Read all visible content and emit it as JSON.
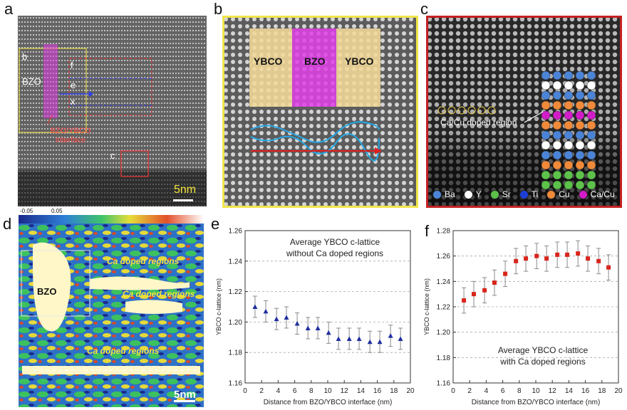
{
  "panels": {
    "a": {
      "label": "a",
      "sublabels": {
        "b": "b",
        "f": "f",
        "e": "e",
        "x": "x",
        "c": "c"
      },
      "bzo": "BZO",
      "interface": [
        "BZO/YBCO",
        "interface"
      ],
      "scale": "5nm"
    },
    "b": {
      "label": "b",
      "regions": [
        "YBCO",
        "BZO",
        "YBCO"
      ]
    },
    "c": {
      "label": "c",
      "doped_region": "Ca/Cu doped region",
      "legend": [
        {
          "name": "Ba",
          "color": "#4b84d6"
        },
        {
          "name": "Y",
          "color": "#ffffff"
        },
        {
          "name": "Sr",
          "color": "#5cc24a"
        },
        {
          "name": "Ti",
          "color": "#1e3fd6"
        },
        {
          "name": "Cu",
          "color": "#f08a3a"
        },
        {
          "name": "Ca/Cu",
          "color": "#d21cc8"
        }
      ]
    },
    "d": {
      "label": "d",
      "colorbar_min": "-0.05",
      "colorbar_max": "0.05",
      "ca_label": "Ca doped regions",
      "bzo": "BZO",
      "scale": "5nm"
    }
  },
  "chart_data": [
    {
      "panel": "e",
      "type": "scatter",
      "label": "e",
      "title_lines": [
        "Average YBCO c-lattice",
        "without Ca doped regions"
      ],
      "xlabel": "Distance from BZO/YBCO interface (nm)",
      "ylabel": "YBCO c-lattice (nm)",
      "xlim": [
        0,
        20
      ],
      "ylim": [
        1.16,
        1.26
      ],
      "xticks": [
        "0",
        "2",
        "4",
        "6",
        "8",
        "10",
        "12",
        "14",
        "16",
        "18",
        "20"
      ],
      "yticks": [
        "1.16",
        "1.18",
        "1.20",
        "1.22",
        "1.24",
        "1.26"
      ],
      "marker_color": "#1f2fa0",
      "x": [
        1.2,
        2.5,
        3.8,
        5.0,
        6.3,
        7.6,
        8.8,
        10.1,
        11.3,
        12.6,
        13.8,
        15.1,
        16.3,
        17.6,
        18.8
      ],
      "y": [
        1.21,
        1.207,
        1.202,
        1.203,
        1.199,
        1.196,
        1.196,
        1.193,
        1.189,
        1.189,
        1.189,
        1.187,
        1.187,
        1.191,
        1.189
      ],
      "err": [
        0.007,
        0.007,
        0.007,
        0.007,
        0.007,
        0.007,
        0.007,
        0.007,
        0.007,
        0.007,
        0.007,
        0.007,
        0.007,
        0.007,
        0.007
      ]
    },
    {
      "panel": "f",
      "type": "scatter",
      "label": "f",
      "title_lines": [
        "Average YBCO c-lattice",
        "with Ca doped regions"
      ],
      "xlabel": "Distance from BZO/YBCO interface (nm)",
      "ylabel": "YBCO c-lattice (nm)",
      "xlim": [
        0,
        20
      ],
      "ylim": [
        1.16,
        1.28
      ],
      "xticks": [
        "0",
        "2",
        "4",
        "6",
        "8",
        "10",
        "12",
        "14",
        "16",
        "18",
        "20"
      ],
      "yticks": [
        "1.16",
        "1.18",
        "1.20",
        "1.22",
        "1.24",
        "1.26",
        "1.28"
      ],
      "marker_color": "#d9251c",
      "x": [
        1.3,
        2.5,
        3.8,
        5.0,
        6.3,
        7.6,
        8.8,
        10.1,
        11.3,
        12.6,
        13.8,
        15.1,
        16.3,
        17.6,
        18.8
      ],
      "y": [
        1.225,
        1.23,
        1.233,
        1.239,
        1.246,
        1.256,
        1.258,
        1.26,
        1.258,
        1.261,
        1.261,
        1.262,
        1.258,
        1.256,
        1.251
      ],
      "err": [
        0.01,
        0.01,
        0.01,
        0.01,
        0.01,
        0.01,
        0.01,
        0.01,
        0.01,
        0.01,
        0.01,
        0.01,
        0.01,
        0.01,
        0.01
      ]
    }
  ]
}
